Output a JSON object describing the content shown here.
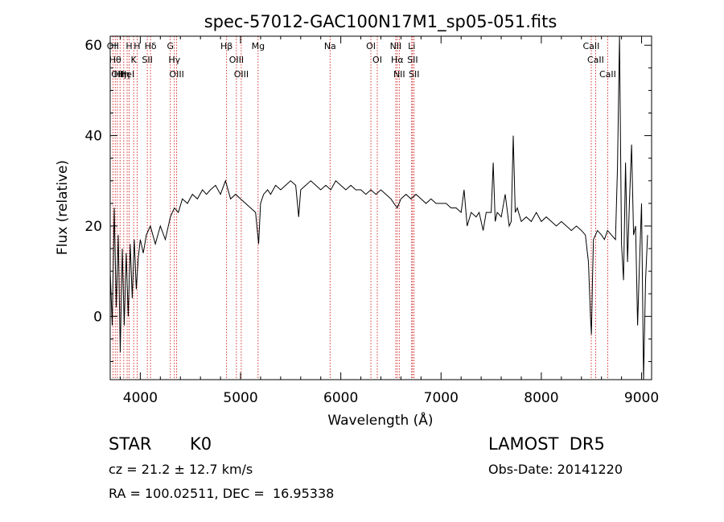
{
  "chart_data": {
    "type": "line",
    "title": "spec-57012-GAC100N17M1_sp05-051.fits",
    "xlabel": "Wavelength (Å)",
    "ylabel": "Flux (relative)",
    "xlim": [
      3700,
      9100
    ],
    "ylim": [
      -14,
      62
    ],
    "x_ticks": [
      4000,
      5000,
      6000,
      7000,
      8000,
      9000
    ],
    "y_ticks": [
      0,
      20,
      40,
      60
    ],
    "grid": false,
    "series": [
      {
        "x": [
          3700,
          3720,
          3740,
          3760,
          3780,
          3800,
          3820,
          3840,
          3860,
          3880,
          3900,
          3920,
          3940,
          3960,
          3980,
          4000,
          4030,
          4060,
          4100,
          4150,
          4200,
          4250,
          4300,
          4340,
          4380,
          4420,
          4470,
          4520,
          4570,
          4620,
          4660,
          4700,
          4750,
          4800,
          4850,
          4900,
          4950,
          5000,
          5050,
          5100,
          5150,
          5180,
          5200,
          5230,
          5270,
          5300,
          5350,
          5400,
          5450,
          5500,
          5550,
          5580,
          5600,
          5650,
          5700,
          5750,
          5800,
          5850,
          5900,
          5950,
          6000,
          6050,
          6100,
          6150,
          6200,
          6250,
          6300,
          6350,
          6400,
          6450,
          6500,
          6530,
          6563,
          6600,
          6650,
          6700,
          6750,
          6800,
          6850,
          6900,
          6950,
          7000,
          7050,
          7100,
          7150,
          7200,
          7230,
          7260,
          7300,
          7350,
          7380,
          7400,
          7420,
          7450,
          7500,
          7520,
          7540,
          7560,
          7600,
          7640,
          7680,
          7700,
          7720,
          7740,
          7760,
          7800,
          7850,
          7900,
          7950,
          8000,
          8050,
          8100,
          8150,
          8200,
          8250,
          8300,
          8350,
          8400,
          8440,
          8470,
          8490,
          8500,
          8510,
          8520,
          8540,
          8560,
          8600,
          8630,
          8660,
          8700,
          8740,
          8760,
          8780,
          8800,
          8820,
          8840,
          8860,
          8880,
          8900,
          8920,
          8940,
          8960,
          8980,
          9000,
          9020,
          9040,
          9060
        ],
        "y": [
          10,
          -2,
          24,
          2,
          18,
          -8,
          15,
          -2,
          14,
          0,
          16,
          4,
          17,
          6,
          13,
          17,
          14,
          18,
          20,
          16,
          20,
          17,
          22,
          24,
          23,
          26,
          25,
          27,
          26,
          28,
          27,
          28,
          29,
          27,
          30,
          26,
          27,
          26,
          25,
          24,
          23,
          16,
          25,
          27,
          28,
          27,
          29,
          28,
          29,
          30,
          29,
          22,
          28,
          29,
          30,
          29,
          28,
          29,
          28,
          30,
          29,
          28,
          29,
          28,
          28,
          27,
          28,
          27,
          28,
          27,
          26,
          25,
          24,
          26,
          27,
          26,
          27,
          26,
          25,
          26,
          25,
          25,
          25,
          24,
          24,
          23,
          28,
          20,
          23,
          22,
          23,
          21,
          19,
          23,
          23,
          34,
          21,
          23,
          22,
          27,
          20,
          21,
          40,
          23,
          24,
          21,
          22,
          21,
          23,
          21,
          22,
          21,
          20,
          21,
          20,
          19,
          20,
          19,
          18,
          12,
          0,
          -4,
          8,
          17,
          18,
          19,
          18,
          17,
          19,
          18,
          17,
          33,
          63,
          16,
          8,
          34,
          12,
          26,
          38,
          18,
          20,
          -2,
          12,
          25,
          -14,
          8,
          18
        ]
      }
    ],
    "line_labels": [
      {
        "x": 3727,
        "label": "OII"
      },
      {
        "x": 3750,
        "label": "Hθ"
      },
      {
        "x": 3771,
        "label": "OII"
      },
      {
        "x": 3798,
        "label": "Hη"
      },
      {
        "x": 3835,
        "label": "Hη"
      },
      {
        "x": 3869,
        "label": "HeI"
      },
      {
        "x": 3889,
        "label": "H"
      },
      {
        "x": 3934,
        "label": "K"
      },
      {
        "x": 3968,
        "label": "H"
      },
      {
        "x": 4070,
        "label": "SII"
      },
      {
        "x": 4102,
        "label": "Hδ"
      },
      {
        "x": 4300,
        "label": "G"
      },
      {
        "x": 4340,
        "label": "Hγ"
      },
      {
        "x": 4363,
        "label": "OIII"
      },
      {
        "x": 4861,
        "label": "Hβ"
      },
      {
        "x": 4959,
        "label": "OIII"
      },
      {
        "x": 5007,
        "label": "OIII"
      },
      {
        "x": 5175,
        "label": "Mg"
      },
      {
        "x": 5893,
        "label": "Na"
      },
      {
        "x": 6300,
        "label": "OI"
      },
      {
        "x": 6364,
        "label": "OI"
      },
      {
        "x": 6548,
        "label": "NII"
      },
      {
        "x": 6563,
        "label": "Hα"
      },
      {
        "x": 6583,
        "label": "NII"
      },
      {
        "x": 6707,
        "label": "Li"
      },
      {
        "x": 6716,
        "label": "SII"
      },
      {
        "x": 6731,
        "label": "SII"
      },
      {
        "x": 8498,
        "label": "CaII"
      },
      {
        "x": 8542,
        "label": "CaII"
      },
      {
        "x": 8662,
        "label": "CaII"
      }
    ]
  },
  "info": {
    "class": "STAR",
    "subclass": "K0",
    "survey": "LAMOST  DR5",
    "cz": "cz = 21.2 ± 12.7 km/s",
    "obs_date": "Obs-Date: 20141220",
    "coords": "RA = 100.02511, DEC =  16.95338"
  }
}
